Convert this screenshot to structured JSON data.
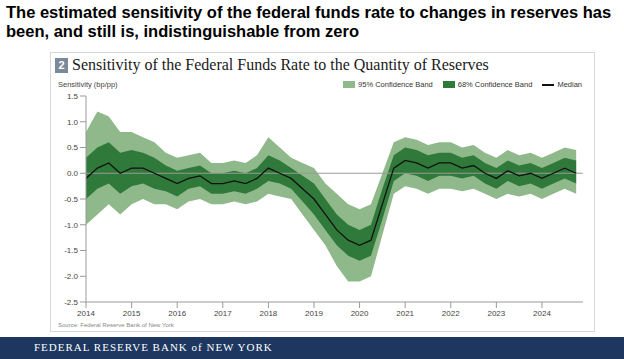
{
  "headline": "The estimated sensitivity of the federal funds rate to changes in reserves has been, and still is, indistinguishable from zero",
  "footer": "FEDERAL RESERVE BANK of NEW YORK",
  "chart_data": {
    "type": "line",
    "figure_number": "2",
    "title": "Sensitivity of the Federal Funds Rate to the Quantity of Reserves",
    "y_label": "Sensitivity (bp/pp)",
    "source": "Source: Federal Reserve Bank of New York",
    "legend": "top-right",
    "grid": false,
    "reference_line": 0,
    "xlim": [
      2014,
      2024.9
    ],
    "xticks": [
      2014,
      2015,
      2016,
      2017,
      2018,
      2019,
      2020,
      2021,
      2022,
      2023,
      2024
    ],
    "ylim": [
      -2.5,
      1.5
    ],
    "yticks": [
      -2.5,
      {
        "value": -2,
        "label": "-2.0"
      },
      -1.5,
      {
        "value": -1,
        "label": "-1.0"
      },
      -0.5,
      {
        "value": 0,
        "label": "0.0"
      },
      0.5,
      {
        "value": 1,
        "label": "1.0"
      },
      1.5
    ],
    "x": [
      2014,
      2014.25,
      2014.5,
      2014.75,
      2015,
      2015.25,
      2015.5,
      2015.75,
      2016,
      2016.25,
      2016.5,
      2016.75,
      2017,
      2017.25,
      2017.5,
      2017.75,
      2018,
      2018.25,
      2018.5,
      2018.75,
      2019,
      2019.25,
      2019.5,
      2019.75,
      2020,
      2020.25,
      2020.5,
      2020.75,
      2021,
      2021.25,
      2021.5,
      2021.75,
      2022,
      2022.25,
      2022.5,
      2022.75,
      2023,
      2023.25,
      2023.5,
      2023.75,
      2024,
      2024.25,
      2024.5,
      2024.75
    ],
    "series": [
      {
        "name": "95% Confidence Band",
        "type": "area",
        "color": "#8fb98a",
        "lower": [
          -1.0,
          -0.8,
          -0.6,
          -0.8,
          -0.6,
          -0.5,
          -0.6,
          -0.6,
          -0.7,
          -0.55,
          -0.5,
          -0.6,
          -0.6,
          -0.55,
          -0.6,
          -0.55,
          -0.4,
          -0.45,
          -0.5,
          -0.8,
          -1.1,
          -1.4,
          -1.8,
          -2.1,
          -2.1,
          -2.0,
          -1.2,
          -0.4,
          -0.25,
          -0.3,
          -0.4,
          -0.3,
          -0.3,
          -0.35,
          -0.3,
          -0.4,
          -0.5,
          -0.4,
          -0.45,
          -0.4,
          -0.5,
          -0.4,
          -0.3,
          -0.4
        ],
        "upper": [
          0.8,
          1.2,
          1.1,
          0.8,
          0.8,
          0.7,
          0.6,
          0.4,
          0.3,
          0.35,
          0.4,
          0.2,
          0.2,
          0.25,
          0.2,
          0.35,
          0.7,
          0.5,
          0.3,
          0.2,
          0.1,
          -0.2,
          -0.4,
          -0.6,
          -0.7,
          -0.6,
          0.0,
          0.6,
          0.7,
          0.65,
          0.55,
          0.6,
          0.6,
          0.5,
          0.55,
          0.4,
          0.3,
          0.45,
          0.35,
          0.4,
          0.3,
          0.4,
          0.5,
          0.45
        ]
      },
      {
        "name": "68% Confidence Band",
        "type": "area",
        "color": "#2f7a3b",
        "lower": [
          -0.5,
          -0.3,
          -0.2,
          -0.4,
          -0.25,
          -0.2,
          -0.3,
          -0.35,
          -0.45,
          -0.3,
          -0.25,
          -0.4,
          -0.4,
          -0.35,
          -0.4,
          -0.3,
          -0.15,
          -0.2,
          -0.3,
          -0.55,
          -0.8,
          -1.1,
          -1.4,
          -1.6,
          -1.7,
          -1.6,
          -0.9,
          -0.15,
          0.0,
          -0.05,
          -0.15,
          -0.05,
          -0.05,
          -0.1,
          -0.05,
          -0.2,
          -0.3,
          -0.15,
          -0.25,
          -0.2,
          -0.3,
          -0.2,
          -0.1,
          -0.2
        ],
        "upper": [
          0.3,
          0.5,
          0.6,
          0.4,
          0.45,
          0.4,
          0.3,
          0.15,
          0.05,
          0.1,
          0.15,
          0.0,
          0.0,
          0.05,
          0.0,
          0.1,
          0.35,
          0.25,
          0.1,
          -0.05,
          -0.2,
          -0.5,
          -0.8,
          -1.0,
          -1.1,
          -1.0,
          -0.3,
          0.35,
          0.5,
          0.45,
          0.35,
          0.4,
          0.4,
          0.3,
          0.35,
          0.2,
          0.1,
          0.25,
          0.15,
          0.2,
          0.1,
          0.2,
          0.3,
          0.25
        ]
      },
      {
        "name": "Median",
        "type": "line",
        "color": "#111111",
        "values": [
          -0.1,
          0.1,
          0.2,
          0.0,
          0.1,
          0.1,
          0.0,
          -0.1,
          -0.2,
          -0.1,
          -0.05,
          -0.2,
          -0.2,
          -0.15,
          -0.2,
          -0.1,
          0.1,
          0.0,
          -0.1,
          -0.3,
          -0.5,
          -0.8,
          -1.1,
          -1.3,
          -1.4,
          -1.3,
          -0.6,
          0.1,
          0.25,
          0.2,
          0.1,
          0.2,
          0.2,
          0.1,
          0.15,
          0.0,
          -0.1,
          0.05,
          -0.05,
          0.0,
          -0.1,
          0.0,
          0.1,
          0.0
        ]
      }
    ]
  }
}
